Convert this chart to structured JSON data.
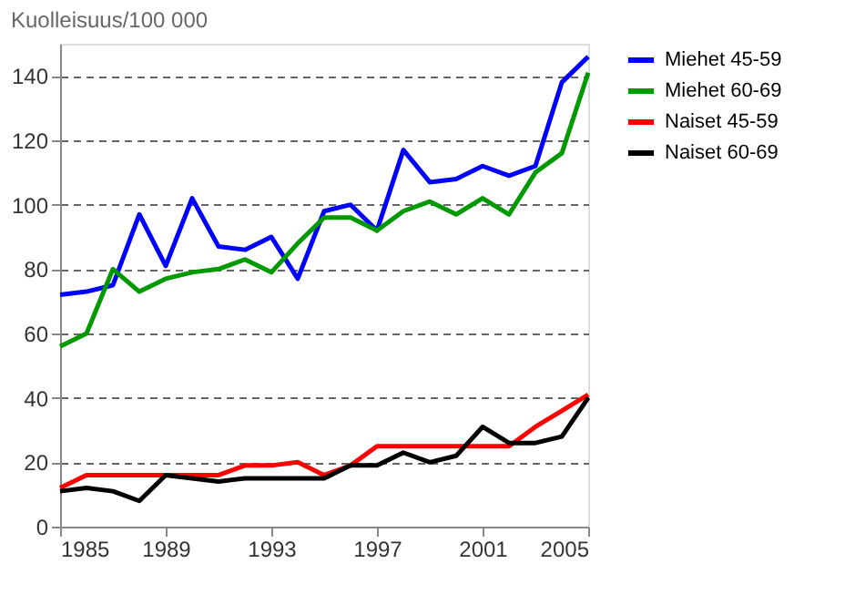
{
  "chart_data": {
    "type": "line",
    "ylabel": "Kuolleisuus/100 000",
    "x": [
      1985,
      1986,
      1987,
      1988,
      1989,
      1990,
      1991,
      1992,
      1993,
      1994,
      1995,
      1996,
      1997,
      1998,
      1999,
      2000,
      2001,
      2002,
      2003,
      2004,
      2005
    ],
    "series": [
      {
        "name": "Miehet 45-59",
        "color": "#0000ff",
        "values": [
          72,
          73,
          75,
          97,
          81,
          102,
          87,
          86,
          90,
          77,
          98,
          100,
          92,
          117,
          107,
          108,
          112,
          109,
          112,
          138,
          146
        ]
      },
      {
        "name": "Miehet 60-69",
        "color": "#009900",
        "values": [
          56,
          60,
          80,
          73,
          77,
          79,
          80,
          83,
          79,
          88,
          96,
          96,
          92,
          98,
          101,
          97,
          102,
          97,
          110,
          116,
          141
        ]
      },
      {
        "name": "Naiset 45-59",
        "color": "#ff0000",
        "values": [
          12,
          16,
          16,
          16,
          16,
          16,
          16,
          19,
          19,
          20,
          16,
          19,
          25,
          25,
          25,
          25,
          25,
          25,
          31,
          36,
          41
        ]
      },
      {
        "name": "Naiset 60-69",
        "color": "#000000",
        "values": [
          11,
          12,
          11,
          8,
          16,
          15,
          14,
          15,
          15,
          15,
          15,
          19,
          19,
          23,
          20,
          22,
          31,
          26,
          26,
          28,
          40
        ]
      }
    ],
    "xlim": [
      1985,
      2005
    ],
    "xticks": [
      1985,
      1989,
      1993,
      1997,
      2001,
      2005
    ],
    "ylim": [
      0,
      150
    ],
    "yticks": [
      0,
      20,
      40,
      60,
      80,
      100,
      120,
      140
    ],
    "grid": "y",
    "legend": "right",
    "marker": "none",
    "line_style": "solid"
  }
}
